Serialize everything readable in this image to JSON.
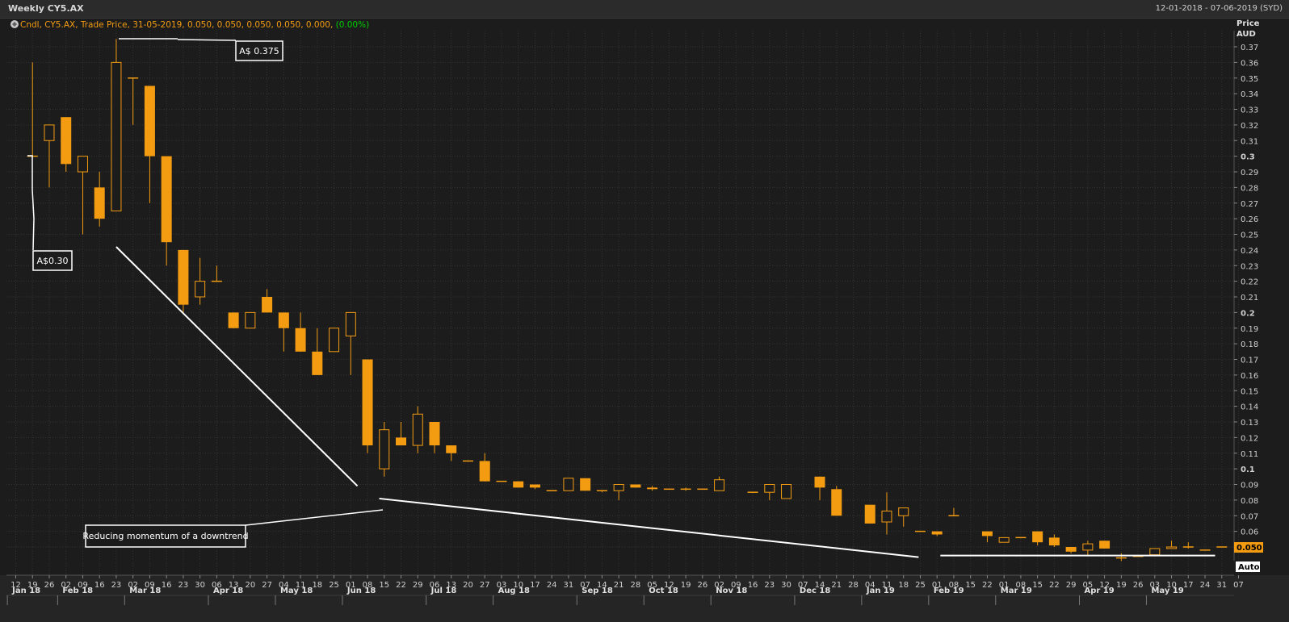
{
  "header": {
    "title": "Weekly CY5.AX",
    "date_range": "12-01-2018 - 07-06-2019 (SYD)",
    "legend_prefix": "Cndl, CY5.AX, Trade Price, 31-05-2019, 0.050, 0.050, 0.050, 0.050, 0.000, (0.00%)",
    "legend_change": "(0.00%)"
  },
  "axis": {
    "price_label": "Price",
    "currency_label": "AUD",
    "auto_label": "Auto",
    "last_price_label": "0.050"
  },
  "colors": {
    "candle": "#f39c12",
    "background": "#1c1c1c",
    "grid": "#333333",
    "annotation": "#ffffff",
    "positive_text": "#00d000"
  },
  "annotations": {
    "high_label": "A$ 0.375",
    "start_label": "A$0.30",
    "momentum_label": "Reducing momentum of a downtrend"
  },
  "chart_data": {
    "type": "candlestick",
    "title": "Weekly CY5.AX",
    "ylabel": "Price AUD",
    "ylim": [
      0.0435,
      0.3765
    ],
    "y_ticks": [
      "0.37",
      "0.36",
      "0.35",
      "0.34",
      "0.33",
      "0.32",
      "0.31",
      "0.3",
      "0.29",
      "0.28",
      "0.27",
      "0.26",
      "0.25",
      "0.24",
      "0.23",
      "0.22",
      "0.21",
      "0.2",
      "0.19",
      "0.18",
      "0.17",
      "0.16",
      "0.15",
      "0.14",
      "0.13",
      "0.12",
      "0.11",
      "0.1",
      "0.09",
      "0.08",
      "0.07",
      "0.06",
      "0.05"
    ],
    "x_ticks": [
      "12",
      "19",
      "26",
      "02",
      "09",
      "16",
      "23",
      "02",
      "09",
      "16",
      "23",
      "30",
      "06",
      "13",
      "20",
      "27",
      "04",
      "11",
      "18",
      "25",
      "01",
      "08",
      "15",
      "22",
      "29",
      "06",
      "13",
      "20",
      "27",
      "03",
      "10",
      "17",
      "24",
      "31",
      "07",
      "14",
      "21",
      "28",
      "05",
      "12",
      "19",
      "26",
      "02",
      "09",
      "16",
      "23",
      "30",
      "07",
      "14",
      "21",
      "28",
      "04",
      "11",
      "18",
      "25",
      "01",
      "08",
      "15",
      "22",
      "01",
      "08",
      "15",
      "22",
      "29",
      "05",
      "12",
      "19",
      "26",
      "03",
      "10",
      "17",
      "24",
      "31",
      "07"
    ],
    "month_labels": [
      {
        "label": "Jan 18",
        "tick": 0
      },
      {
        "label": "Feb 18",
        "tick": 3
      },
      {
        "label": "Mar 18",
        "tick": 7
      },
      {
        "label": "Apr 18",
        "tick": 12
      },
      {
        "label": "May 18",
        "tick": 16
      },
      {
        "label": "Jun 18",
        "tick": 20
      },
      {
        "label": "Jul 18",
        "tick": 25
      },
      {
        "label": "Aug 18",
        "tick": 29
      },
      {
        "label": "Sep 18",
        "tick": 34
      },
      {
        "label": "Oct 18",
        "tick": 38
      },
      {
        "label": "Nov 18",
        "tick": 42
      },
      {
        "label": "Dec 18",
        "tick": 47
      },
      {
        "label": "Jan 19",
        "tick": 51
      },
      {
        "label": "Feb 19",
        "tick": 55
      },
      {
        "label": "Mar 19",
        "tick": 59
      },
      {
        "label": "Apr 19",
        "tick": 64
      },
      {
        "label": "May 19",
        "tick": 68
      }
    ],
    "candles": [
      {
        "t": 1,
        "o": 0.3,
        "h": 0.36,
        "l": 0.3,
        "c": 0.3
      },
      {
        "t": 2,
        "o": 0.31,
        "h": 0.32,
        "l": 0.28,
        "c": 0.32
      },
      {
        "t": 3,
        "o": 0.325,
        "h": 0.325,
        "l": 0.29,
        "c": 0.295
      },
      {
        "t": 4,
        "o": 0.29,
        "h": 0.3,
        "l": 0.25,
        "c": 0.3
      },
      {
        "t": 5,
        "o": 0.28,
        "h": 0.29,
        "l": 0.255,
        "c": 0.26
      },
      {
        "t": 6,
        "o": 0.265,
        "h": 0.375,
        "l": 0.265,
        "c": 0.36
      },
      {
        "t": 7,
        "o": 0.35,
        "h": 0.35,
        "l": 0.32,
        "c": 0.35
      },
      {
        "t": 8,
        "o": 0.345,
        "h": 0.345,
        "l": 0.27,
        "c": 0.3
      },
      {
        "t": 9,
        "o": 0.3,
        "h": 0.3,
        "l": 0.23,
        "c": 0.245
      },
      {
        "t": 10,
        "o": 0.24,
        "h": 0.24,
        "l": 0.2,
        "c": 0.205
      },
      {
        "t": 11,
        "o": 0.21,
        "h": 0.235,
        "l": 0.205,
        "c": 0.22
      },
      {
        "t": 12,
        "o": 0.22,
        "h": 0.23,
        "l": 0.22,
        "c": 0.22
      },
      {
        "t": 13,
        "o": 0.2,
        "h": 0.2,
        "l": 0.19,
        "c": 0.19
      },
      {
        "t": 14,
        "o": 0.19,
        "h": 0.2,
        "l": 0.19,
        "c": 0.2
      },
      {
        "t": 15,
        "o": 0.21,
        "h": 0.215,
        "l": 0.2,
        "c": 0.2
      },
      {
        "t": 16,
        "o": 0.2,
        "h": 0.2,
        "l": 0.175,
        "c": 0.19
      },
      {
        "t": 17,
        "o": 0.19,
        "h": 0.2,
        "l": 0.175,
        "c": 0.175
      },
      {
        "t": 18,
        "o": 0.175,
        "h": 0.19,
        "l": 0.16,
        "c": 0.16
      },
      {
        "t": 19,
        "o": 0.175,
        "h": 0.19,
        "l": 0.175,
        "c": 0.19
      },
      {
        "t": 20,
        "o": 0.185,
        "h": 0.2,
        "l": 0.16,
        "c": 0.2
      },
      {
        "t": 21,
        "o": 0.17,
        "h": 0.17,
        "l": 0.11,
        "c": 0.115
      },
      {
        "t": 22,
        "o": 0.1,
        "h": 0.13,
        "l": 0.095,
        "c": 0.125
      },
      {
        "t": 23,
        "o": 0.12,
        "h": 0.13,
        "l": 0.115,
        "c": 0.115
      },
      {
        "t": 24,
        "o": 0.115,
        "h": 0.14,
        "l": 0.11,
        "c": 0.135
      },
      {
        "t": 25,
        "o": 0.13,
        "h": 0.13,
        "l": 0.11,
        "c": 0.115
      },
      {
        "t": 26,
        "o": 0.115,
        "h": 0.115,
        "l": 0.105,
        "c": 0.11
      },
      {
        "t": 27,
        "o": 0.105,
        "h": 0.105,
        "l": 0.105,
        "c": 0.105
      },
      {
        "t": 28,
        "o": 0.105,
        "h": 0.11,
        "l": 0.092,
        "c": 0.092
      },
      {
        "t": 29,
        "o": 0.092,
        "h": 0.092,
        "l": 0.092,
        "c": 0.092
      },
      {
        "t": 30,
        "o": 0.092,
        "h": 0.092,
        "l": 0.088,
        "c": 0.088
      },
      {
        "t": 31,
        "o": 0.09,
        "h": 0.09,
        "l": 0.087,
        "c": 0.088
      },
      {
        "t": 32,
        "o": 0.086,
        "h": 0.086,
        "l": 0.086,
        "c": 0.086
      },
      {
        "t": 33,
        "o": 0.086,
        "h": 0.094,
        "l": 0.086,
        "c": 0.094
      },
      {
        "t": 34,
        "o": 0.094,
        "h": 0.094,
        "l": 0.086,
        "c": 0.086
      },
      {
        "t": 35,
        "o": 0.086,
        "h": 0.086,
        "l": 0.085,
        "c": 0.086
      },
      {
        "t": 36,
        "o": 0.086,
        "h": 0.09,
        "l": 0.08,
        "c": 0.09
      },
      {
        "t": 37,
        "o": 0.09,
        "h": 0.09,
        "l": 0.088,
        "c": 0.088
      },
      {
        "t": 38,
        "o": 0.088,
        "h": 0.089,
        "l": 0.086,
        "c": 0.087
      },
      {
        "t": 39,
        "o": 0.087,
        "h": 0.087,
        "l": 0.087,
        "c": 0.087
      },
      {
        "t": 40,
        "o": 0.087,
        "h": 0.088,
        "l": 0.086,
        "c": 0.087
      },
      {
        "t": 41,
        "o": 0.087,
        "h": 0.087,
        "l": 0.087,
        "c": 0.087
      },
      {
        "t": 42,
        "o": 0.086,
        "h": 0.095,
        "l": 0.086,
        "c": 0.093
      },
      {
        "t": 44,
        "o": 0.085,
        "h": 0.085,
        "l": 0.085,
        "c": 0.085
      },
      {
        "t": 45,
        "o": 0.085,
        "h": 0.09,
        "l": 0.08,
        "c": 0.09
      },
      {
        "t": 46,
        "o": 0.081,
        "h": 0.09,
        "l": 0.081,
        "c": 0.09
      },
      {
        "t": 48,
        "o": 0.095,
        "h": 0.095,
        "l": 0.08,
        "c": 0.088
      },
      {
        "t": 49,
        "o": 0.087,
        "h": 0.089,
        "l": 0.07,
        "c": 0.07
      },
      {
        "t": 51,
        "o": 0.077,
        "h": 0.077,
        "l": 0.065,
        "c": 0.065
      },
      {
        "t": 52,
        "o": 0.066,
        "h": 0.085,
        "l": 0.058,
        "c": 0.073
      },
      {
        "t": 53,
        "o": 0.07,
        "h": 0.075,
        "l": 0.063,
        "c": 0.075
      },
      {
        "t": 54,
        "o": 0.06,
        "h": 0.06,
        "l": 0.06,
        "c": 0.06
      },
      {
        "t": 55,
        "o": 0.06,
        "h": 0.06,
        "l": 0.057,
        "c": 0.058
      },
      {
        "t": 56,
        "o": 0.07,
        "h": 0.075,
        "l": 0.07,
        "c": 0.07
      },
      {
        "t": 58,
        "o": 0.06,
        "h": 0.06,
        "l": 0.053,
        "c": 0.057
      },
      {
        "t": 59,
        "o": 0.053,
        "h": 0.056,
        "l": 0.053,
        "c": 0.056
      },
      {
        "t": 60,
        "o": 0.056,
        "h": 0.056,
        "l": 0.056,
        "c": 0.056
      },
      {
        "t": 61,
        "o": 0.06,
        "h": 0.06,
        "l": 0.051,
        "c": 0.053
      },
      {
        "t": 62,
        "o": 0.056,
        "h": 0.058,
        "l": 0.05,
        "c": 0.051
      },
      {
        "t": 63,
        "o": 0.05,
        "h": 0.05,
        "l": 0.046,
        "c": 0.047
      },
      {
        "t": 64,
        "o": 0.048,
        "h": 0.054,
        "l": 0.044,
        "c": 0.052
      },
      {
        "t": 65,
        "o": 0.054,
        "h": 0.054,
        "l": 0.049,
        "c": 0.049
      },
      {
        "t": 66,
        "o": 0.043,
        "h": 0.046,
        "l": 0.041,
        "c": 0.043
      },
      {
        "t": 67,
        "o": 0.044,
        "h": 0.044,
        "l": 0.044,
        "c": 0.044
      },
      {
        "t": 68,
        "o": 0.045,
        "h": 0.048,
        "l": 0.044,
        "c": 0.049
      },
      {
        "t": 69,
        "o": 0.049,
        "h": 0.054,
        "l": 0.049,
        "c": 0.05
      },
      {
        "t": 70,
        "o": 0.05,
        "h": 0.053,
        "l": 0.049,
        "c": 0.05
      },
      {
        "t": 71,
        "o": 0.048,
        "h": 0.048,
        "l": 0.048,
        "c": 0.048
      },
      {
        "t": 72,
        "o": 0.05,
        "h": 0.05,
        "l": 0.05,
        "c": 0.05
      }
    ],
    "trend_lines": [
      {
        "x1": 6.0,
        "y1": 0.242,
        "x2": 20.4,
        "y2": 0.089
      },
      {
        "x1": 21.7,
        "y1": 0.081,
        "x2": 53.9,
        "y2": 0.0435
      },
      {
        "x1": 55.2,
        "y1": 0.0445,
        "x2": 71.6,
        "y2": 0.0445
      }
    ]
  }
}
